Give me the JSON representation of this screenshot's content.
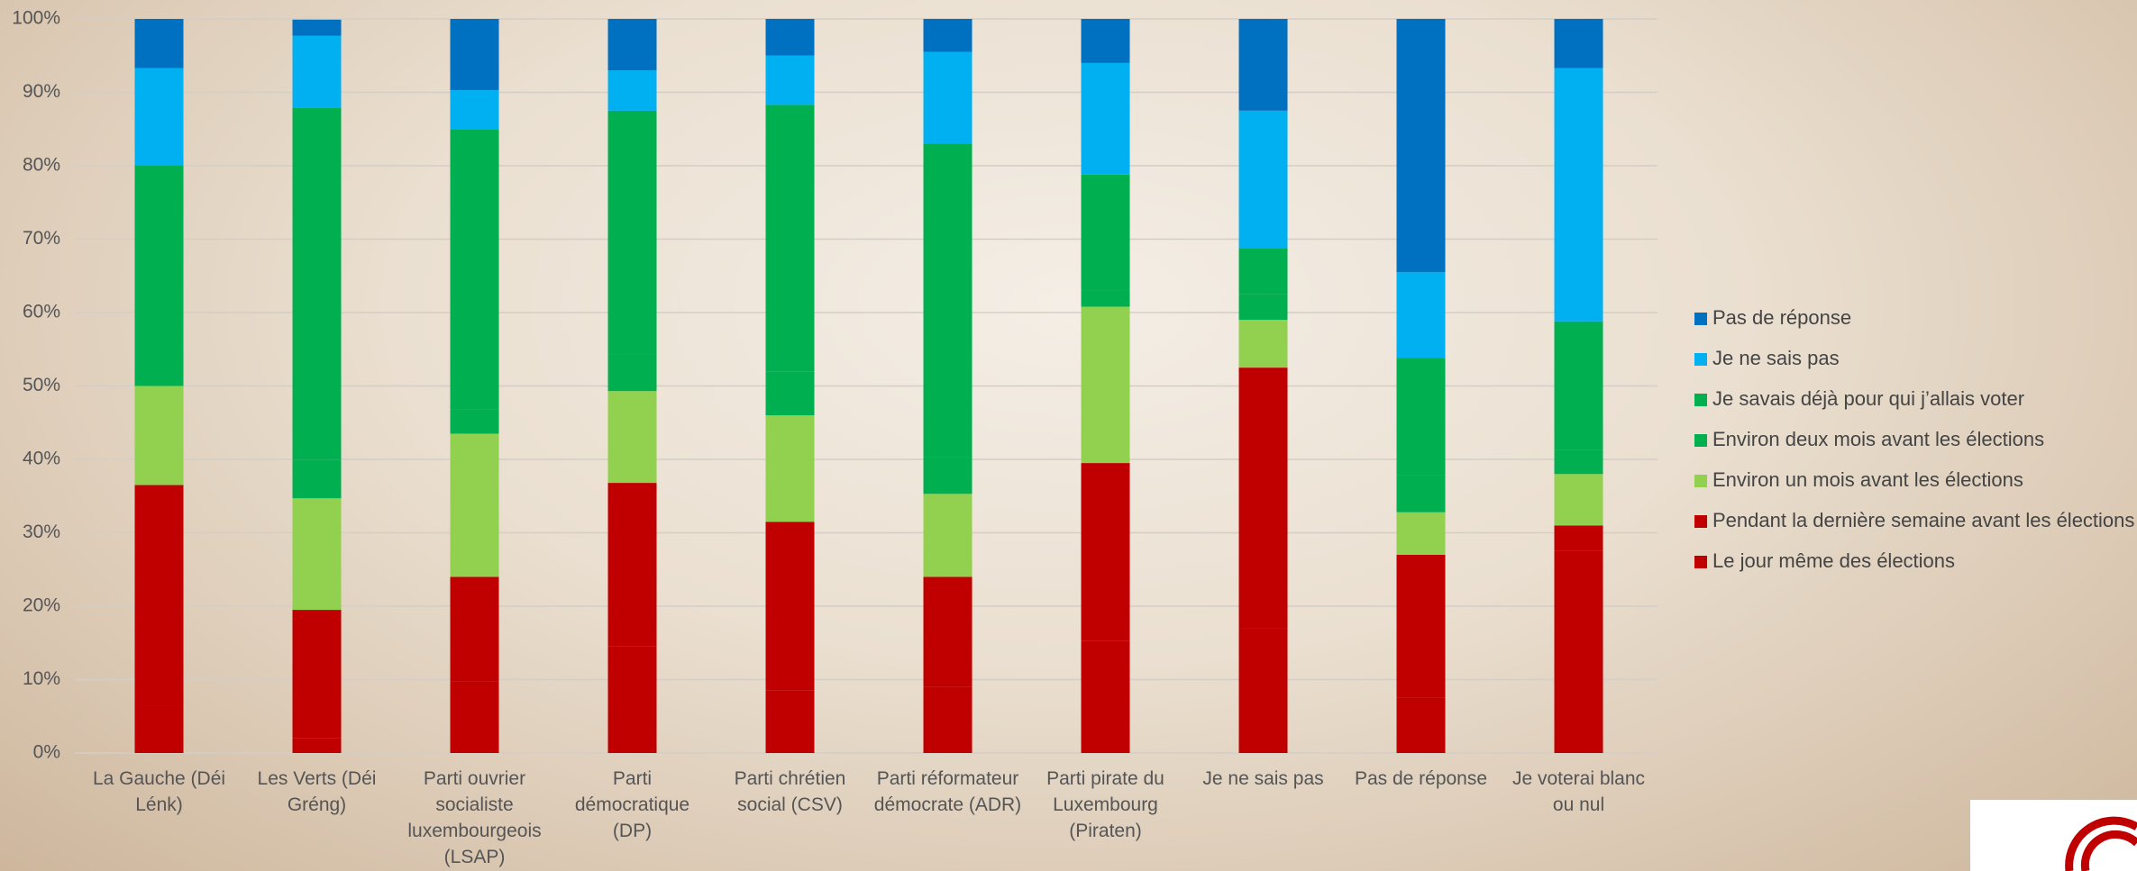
{
  "chart_data": {
    "type": "stacked_bar",
    "categories": [
      "La Gauche (Déi Lénk)",
      "Les Verts (Déi Gréng)",
      "Parti ouvrier socialiste luxembourgeois (LSAP)",
      "Parti démocratique (DP)",
      "Parti chrétien social (CSV)",
      "Parti réformateur démocrate (ADR)",
      "Parti pirate du Luxembourg (Piraten)",
      "Je ne sais pas",
      "Pas de réponse",
      "Je voterai blanc ou nul"
    ],
    "series": [
      {
        "name": "Le jour même des élections",
        "color": "#c00000",
        "values": [
          6.5,
          2,
          9.8,
          14.5,
          8.5,
          9,
          15.3,
          17,
          7.5,
          27.5
        ]
      },
      {
        "name": "Pendant la dernière semaine avant les élections",
        "color": "#c00000",
        "values": [
          30,
          17.5,
          14.2,
          22.3,
          23,
          15,
          24.2,
          35.5,
          19.5,
          3.5
        ]
      },
      {
        "name": "Environ un mois avant les élections",
        "color": "#92d050",
        "values": [
          13.5,
          15.2,
          19.5,
          12.5,
          14.5,
          11.3,
          21.3,
          6.5,
          5.8,
          7
        ]
      },
      {
        "name": "Environ deux mois avant les élections",
        "color": "#00b050",
        "values": [
          10,
          5.2,
          3.3,
          5,
          6,
          5,
          2.2,
          3.5,
          5,
          3.3
        ]
      },
      {
        "name": "Je savais déjà pour qui j’allais voter",
        "color": "#00b050",
        "values": [
          20,
          48,
          38.2,
          33.2,
          36.3,
          42.7,
          15.8,
          6.3,
          16,
          17.5
        ]
      },
      {
        "name": "Je ne sais pas",
        "color": "#00b0f0",
        "values": [
          13.3,
          9.8,
          5.3,
          5.5,
          6.7,
          12.5,
          15.2,
          18.7,
          11.7,
          34.5
        ]
      },
      {
        "name": "Pas de réponse",
        "color": "#0070c0",
        "values": [
          6.7,
          2.2,
          9.7,
          7,
          5,
          4.5,
          6,
          12.5,
          34.5,
          6.7
        ]
      }
    ],
    "ylim": [
      0,
      100
    ],
    "yticks": [
      {
        "value": 0,
        "label": "0%"
      },
      {
        "value": 10,
        "label": "10%"
      },
      {
        "value": 20,
        "label": "20%"
      },
      {
        "value": 30,
        "label": "30%"
      },
      {
        "value": 40,
        "label": "40%"
      },
      {
        "value": 50,
        "label": "50%"
      },
      {
        "value": 60,
        "label": "60%"
      },
      {
        "value": 70,
        "label": "70%"
      },
      {
        "value": 80,
        "label": "80%"
      },
      {
        "value": 90,
        "label": "90%"
      },
      {
        "value": 100,
        "label": "100%"
      }
    ],
    "grid": true,
    "legend": "right"
  }
}
